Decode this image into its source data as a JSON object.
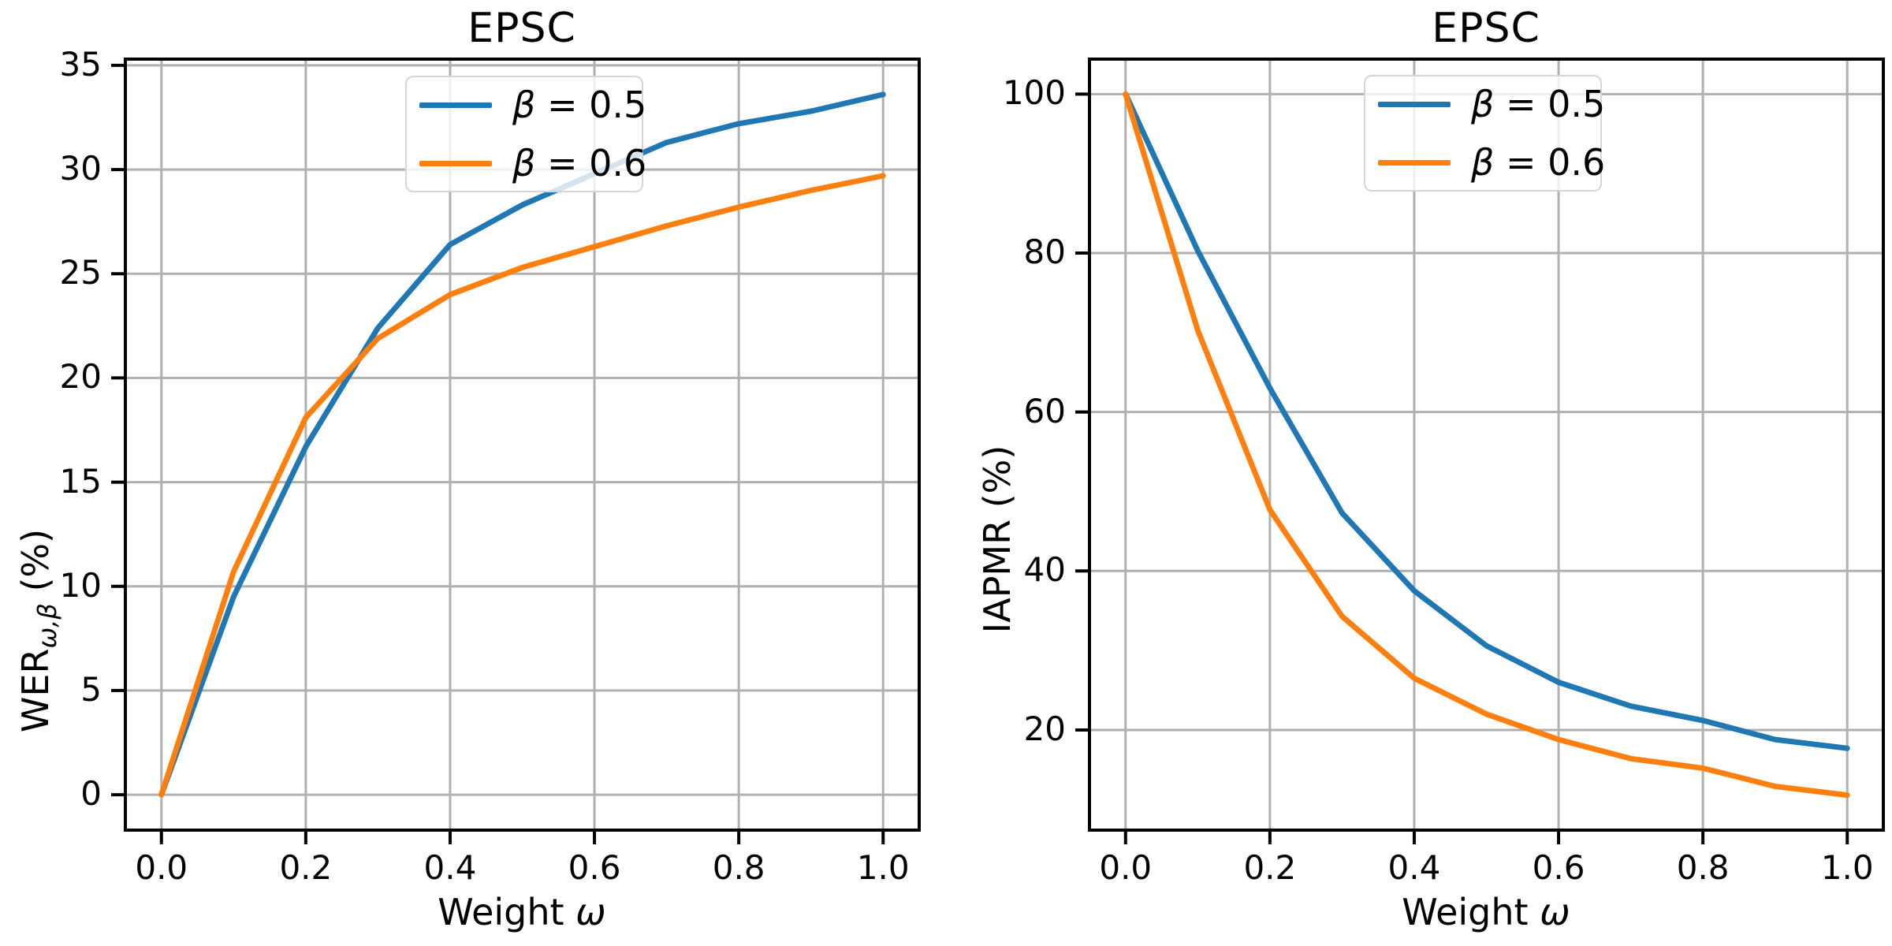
{
  "page": {
    "background": "#ffffff"
  },
  "colors": {
    "series_blue": "#1f77b4",
    "series_orange": "#ff7f0e",
    "grid": "#b0b0b0",
    "spine": "#000000",
    "legend_border": "#d5d5d5"
  },
  "chart_data": [
    {
      "type": "line",
      "title": "EPSC",
      "xlabel_text": "Weight ",
      "xlabel_symbol": "ω",
      "ylabel_main": "WER",
      "ylabel_sub": "ω,β",
      "ylabel_unit": " (%)",
      "x": [
        0.0,
        0.1,
        0.2,
        0.3,
        0.4,
        0.5,
        0.6,
        0.7,
        0.8,
        0.9,
        1.0
      ],
      "series": [
        {
          "name_symbol": "β",
          "name_rest": " = 0.5",
          "color": "#1f77b4",
          "values": [
            0.0,
            9.5,
            16.7,
            22.4,
            26.4,
            28.3,
            29.8,
            31.3,
            32.2,
            32.8,
            33.6
          ]
        },
        {
          "name_symbol": "β",
          "name_rest": " = 0.6",
          "color": "#ff7f0e",
          "values": [
            0.0,
            10.7,
            18.1,
            21.9,
            24.0,
            25.3,
            26.3,
            27.3,
            28.2,
            29.0,
            29.7
          ]
        }
      ],
      "xlim": [
        -0.05,
        1.05
      ],
      "ylim": [
        -1.7,
        35.3
      ],
      "xticks": [
        0.0,
        0.2,
        0.4,
        0.6,
        0.8,
        1.0
      ],
      "xtick_labels": [
        "0.0",
        "0.2",
        "0.4",
        "0.6",
        "0.8",
        "1.0"
      ],
      "yticks": [
        0,
        5,
        10,
        15,
        20,
        25,
        30,
        35
      ],
      "ytick_labels": [
        "0",
        "5",
        "10",
        "15",
        "20",
        "25",
        "30",
        "35"
      ],
      "grid": true,
      "legend_location": "upper center"
    },
    {
      "type": "line",
      "title": "EPSC",
      "xlabel_text": "Weight ",
      "xlabel_symbol": "ω",
      "ylabel_main": "IAPMR",
      "ylabel_sub": "",
      "ylabel_unit": " (%)",
      "x": [
        0.0,
        0.1,
        0.2,
        0.3,
        0.4,
        0.5,
        0.6,
        0.7,
        0.8,
        0.9,
        1.0
      ],
      "series": [
        {
          "name_symbol": "β",
          "name_rest": " = 0.5",
          "color": "#1f77b4",
          "values": [
            100.0,
            80.3,
            63.0,
            47.3,
            37.5,
            30.6,
            26.0,
            23.0,
            21.2,
            18.8,
            17.7
          ]
        },
        {
          "name_symbol": "β",
          "name_rest": " = 0.6",
          "color": "#ff7f0e",
          "values": [
            100.0,
            70.3,
            47.7,
            34.3,
            26.5,
            22.0,
            18.8,
            16.4,
            15.2,
            12.9,
            11.8
          ]
        }
      ],
      "xlim": [
        -0.05,
        1.05
      ],
      "ylim": [
        7.4,
        104.4
      ],
      "xticks": [
        0.0,
        0.2,
        0.4,
        0.6,
        0.8,
        1.0
      ],
      "xtick_labels": [
        "0.0",
        "0.2",
        "0.4",
        "0.6",
        "0.8",
        "1.0"
      ],
      "yticks": [
        20,
        40,
        60,
        80,
        100
      ],
      "ytick_labels": [
        "20",
        "40",
        "60",
        "80",
        "100"
      ],
      "grid": true,
      "legend_location": "upper center"
    }
  ]
}
